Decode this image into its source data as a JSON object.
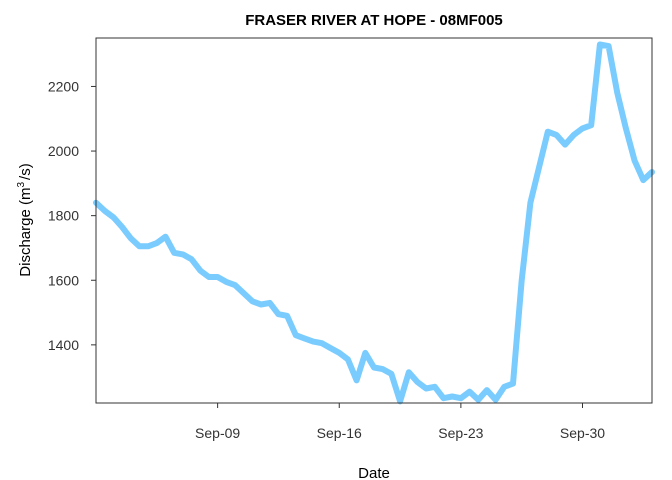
{
  "chart_data": {
    "type": "line",
    "title": "FRASER RIVER AT HOPE - 08MF005",
    "xlabel": "Date",
    "ylabel_main": "Discharge (m",
    "ylabel_sup": "3",
    "ylabel_tail": "/s)",
    "xlim": [
      "2023-09-02",
      "2023-10-04"
    ],
    "ylim": [
      1220,
      2350
    ],
    "grid": false,
    "legend": "none",
    "line_color": "#7ACCFF",
    "x_ticks": [
      {
        "date": "2023-09-09",
        "label": "Sep-09"
      },
      {
        "date": "2023-09-16",
        "label": "Sep-16"
      },
      {
        "date": "2023-09-23",
        "label": "Sep-23"
      },
      {
        "date": "2023-09-30",
        "label": "Sep-30"
      }
    ],
    "y_ticks": [
      {
        "value": 1400,
        "label": "1400"
      },
      {
        "value": 1600,
        "label": "1600"
      },
      {
        "value": 1800,
        "label": "1800"
      },
      {
        "value": 2000,
        "label": "2000"
      },
      {
        "value": 2200,
        "label": "2200"
      }
    ],
    "series": [
      {
        "x": [
          "2023-09-02T00:00",
          "2023-09-02T12:00",
          "2023-09-03T00:00",
          "2023-09-03T12:00",
          "2023-09-04T00:00",
          "2023-09-04T12:00",
          "2023-09-05T00:00",
          "2023-09-05T12:00",
          "2023-09-06T00:00",
          "2023-09-06T12:00",
          "2023-09-07T00:00",
          "2023-09-07T12:00",
          "2023-09-08T00:00",
          "2023-09-08T12:00",
          "2023-09-09T00:00",
          "2023-09-09T12:00",
          "2023-09-10T00:00",
          "2023-09-10T12:00",
          "2023-09-11T00:00",
          "2023-09-11T12:00",
          "2023-09-12T00:00",
          "2023-09-12T12:00",
          "2023-09-13T00:00",
          "2023-09-13T12:00",
          "2023-09-14T00:00",
          "2023-09-14T12:00",
          "2023-09-15T00:00",
          "2023-09-15T12:00",
          "2023-09-16T00:00",
          "2023-09-16T12:00",
          "2023-09-17T00:00",
          "2023-09-17T12:00",
          "2023-09-18T00:00",
          "2023-09-18T12:00",
          "2023-09-19T00:00",
          "2023-09-19T12:00",
          "2023-09-20T00:00",
          "2023-09-20T12:00",
          "2023-09-21T00:00",
          "2023-09-21T12:00",
          "2023-09-22T00:00",
          "2023-09-22T12:00",
          "2023-09-23T00:00",
          "2023-09-23T12:00",
          "2023-09-24T00:00",
          "2023-09-24T12:00",
          "2023-09-25T00:00",
          "2023-09-25T12:00",
          "2023-09-26T00:00",
          "2023-09-26T12:00",
          "2023-09-27T00:00",
          "2023-09-27T12:00",
          "2023-09-28T00:00",
          "2023-09-28T12:00",
          "2023-09-29T00:00",
          "2023-09-29T12:00",
          "2023-09-30T00:00",
          "2023-09-30T12:00",
          "2023-10-01T00:00",
          "2023-10-01T12:00",
          "2023-10-02T00:00",
          "2023-10-02T12:00",
          "2023-10-03T00:00",
          "2023-10-03T12:00",
          "2023-10-04T00:00"
        ],
        "values": [
          1840,
          1815,
          1795,
          1765,
          1730,
          1705,
          1705,
          1715,
          1735,
          1685,
          1680,
          1665,
          1630,
          1610,
          1610,
          1595,
          1585,
          1560,
          1535,
          1525,
          1530,
          1495,
          1490,
          1430,
          1420,
          1410,
          1405,
          1390,
          1375,
          1355,
          1290,
          1375,
          1330,
          1325,
          1310,
          1225,
          1315,
          1285,
          1265,
          1270,
          1235,
          1240,
          1235,
          1255,
          1230,
          1260,
          1230,
          1270,
          1280,
          1600,
          1840,
          1950,
          2060,
          2050,
          2020,
          2050,
          2070,
          2080,
          2330,
          2325,
          2180,
          2070,
          1970,
          1910,
          1935
        ]
      }
    ]
  }
}
